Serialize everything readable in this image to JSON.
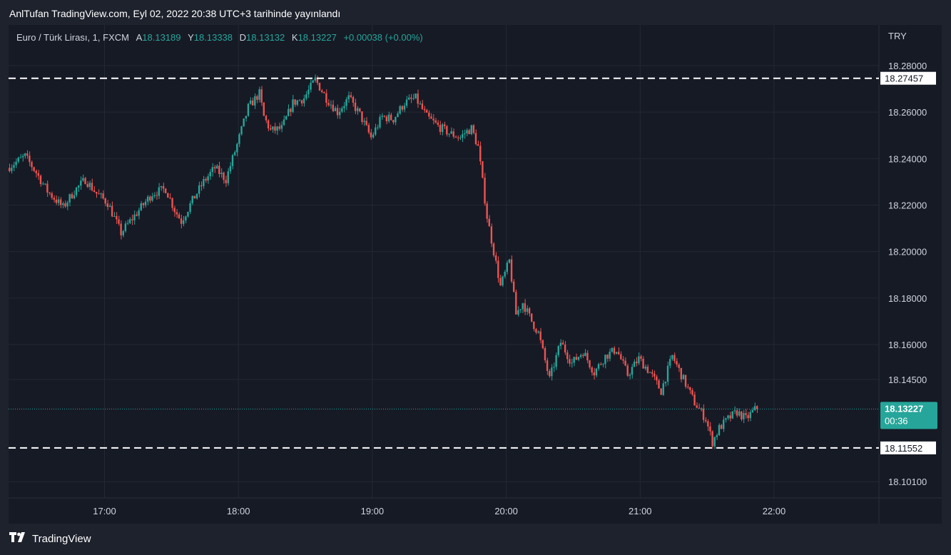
{
  "header": {
    "published_text": "AnlTufan TradingView.com, Eyl 02, 2022 20:38 UTC+3 tarihinde yayınlandı"
  },
  "legend": {
    "symbol": "Euro / Türk Lirası, 1, FXCM",
    "open_label": "A",
    "open_value": "18.13189",
    "high_label": "Y",
    "high_value": "18.13338",
    "low_label": "D",
    "low_value": "18.13132",
    "close_label": "K",
    "close_value": "18.13227",
    "change": "+0.00038 (+0.00%)"
  },
  "footer": {
    "brand": "TradingView"
  },
  "colors": {
    "up": "#26a69a",
    "down": "#ef5350",
    "background": "#161a25",
    "grid": "#242833",
    "text": "#d1d4dc"
  },
  "chart_data": {
    "type": "candlestick",
    "currency": "TRY",
    "y_ticks": [
      "18.28000",
      "18.26000",
      "18.24000",
      "18.22000",
      "18.20000",
      "18.18000",
      "18.16000",
      "18.14500",
      "18.10100"
    ],
    "x_ticks": [
      "17:00",
      "18:00",
      "19:00",
      "20:00",
      "21:00",
      "22:00"
    ],
    "ylim": [
      18.094,
      18.2975
    ],
    "xlim": [
      "16:17",
      "22:47"
    ],
    "horizontal_lines": [
      {
        "value": 18.27457,
        "label": "18.27457",
        "style": "dashed"
      },
      {
        "value": 18.11552,
        "label": "18.11552",
        "style": "dashed"
      }
    ],
    "last_price": {
      "value": 18.13227,
      "label": "18.13227",
      "countdown": "00:36"
    },
    "price_path": [
      [
        "16:17",
        18.236
      ],
      [
        "16:25",
        18.241
      ],
      [
        "16:30",
        18.234
      ],
      [
        "16:35",
        18.226
      ],
      [
        "16:42",
        18.219
      ],
      [
        "16:47",
        18.226
      ],
      [
        "16:52",
        18.231
      ],
      [
        "16:57",
        18.225
      ],
      [
        "17:02",
        18.221
      ],
      [
        "17:08",
        18.208
      ],
      [
        "17:12",
        18.213
      ],
      [
        "17:17",
        18.219
      ],
      [
        "17:22",
        18.225
      ],
      [
        "17:28",
        18.227
      ],
      [
        "17:32",
        18.218
      ],
      [
        "17:35",
        18.213
      ],
      [
        "17:40",
        18.222
      ],
      [
        "17:45",
        18.23
      ],
      [
        "17:50",
        18.236
      ],
      [
        "17:55",
        18.231
      ],
      [
        "18:00",
        18.246
      ],
      [
        "18:05",
        18.262
      ],
      [
        "18:10",
        18.268
      ],
      [
        "18:12",
        18.258
      ],
      [
        "18:15",
        18.252
      ],
      [
        "18:20",
        18.253
      ],
      [
        "18:25",
        18.264
      ],
      [
        "18:30",
        18.266
      ],
      [
        "18:35",
        18.274
      ],
      [
        "18:40",
        18.266
      ],
      [
        "18:45",
        18.26
      ],
      [
        "18:50",
        18.266
      ],
      [
        "18:55",
        18.259
      ],
      [
        "19:00",
        18.249
      ],
      [
        "19:05",
        18.258
      ],
      [
        "19:10",
        18.257
      ],
      [
        "19:15",
        18.264
      ],
      [
        "19:20",
        18.266
      ],
      [
        "19:25",
        18.258
      ],
      [
        "19:30",
        18.254
      ],
      [
        "19:35",
        18.251
      ],
      [
        "19:40",
        18.249
      ],
      [
        "19:42",
        18.251
      ],
      [
        "19:45",
        18.253
      ],
      [
        "19:48",
        18.245
      ],
      [
        "19:50",
        18.23
      ],
      [
        "19:52",
        18.215
      ],
      [
        "19:55",
        18.2
      ],
      [
        "19:58",
        18.185
      ],
      [
        "20:02",
        18.196
      ],
      [
        "20:05",
        18.173
      ],
      [
        "20:08",
        18.178
      ],
      [
        "20:12",
        18.17
      ],
      [
        "20:15",
        18.165
      ],
      [
        "20:20",
        18.145
      ],
      [
        "20:25",
        18.161
      ],
      [
        "20:30",
        18.152
      ],
      [
        "20:35",
        18.157
      ],
      [
        "20:40",
        18.148
      ],
      [
        "20:45",
        18.155
      ],
      [
        "20:50",
        18.158
      ],
      [
        "20:55",
        18.147
      ],
      [
        "21:00",
        18.154
      ],
      [
        "21:05",
        18.148
      ],
      [
        "21:10",
        18.14
      ],
      [
        "21:15",
        18.155
      ],
      [
        "21:20",
        18.145
      ],
      [
        "21:25",
        18.135
      ],
      [
        "21:30",
        18.128
      ],
      [
        "21:33",
        18.118
      ],
      [
        "21:36",
        18.124
      ],
      [
        "21:40",
        18.128
      ],
      [
        "21:44",
        18.131
      ],
      [
        "21:48",
        18.128
      ],
      [
        "21:52",
        18.132
      ]
    ]
  }
}
